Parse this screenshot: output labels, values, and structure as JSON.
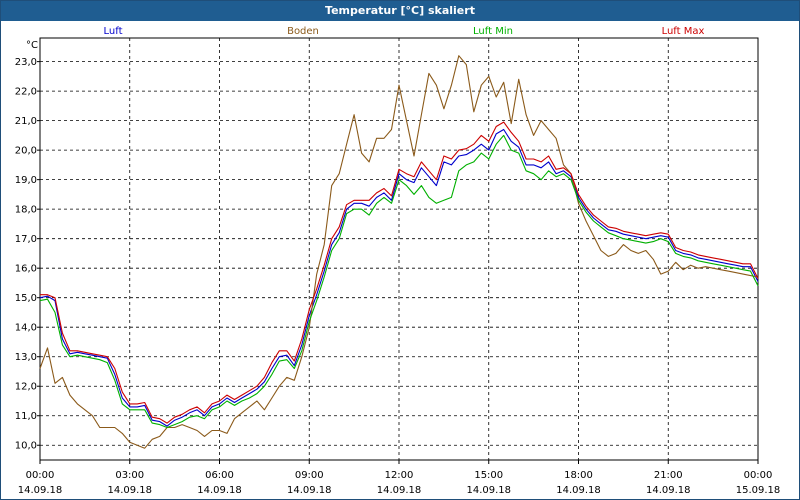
{
  "window": {
    "title": "Temperatur [°C] skaliert"
  },
  "chart_data": {
    "type": "line",
    "title": "Temperatur [°C] skaliert",
    "ylabel": "°C",
    "ylim": [
      9.5,
      23.8
    ],
    "xlim": [
      0,
      24
    ],
    "yticks": [
      10.0,
      11.0,
      12.0,
      13.0,
      14.0,
      15.0,
      16.0,
      17.0,
      18.0,
      19.0,
      20.0,
      21.0,
      22.0,
      23.0
    ],
    "ytick_labels": [
      "10,0",
      "11,0",
      "12,0",
      "13,0",
      "14,0",
      "15,0",
      "16,0",
      "17,0",
      "18,0",
      "19,0",
      "20,0",
      "21,0",
      "22,0",
      "23,0"
    ],
    "xticks": [
      0,
      3,
      6,
      9,
      12,
      15,
      18,
      21,
      24
    ],
    "xtick_time": [
      "00:00",
      "03:00",
      "06:00",
      "09:00",
      "12:00",
      "15:00",
      "18:00",
      "21:00",
      "00:00"
    ],
    "xtick_date": [
      "14.09.18",
      "14.09.18",
      "14.09.18",
      "14.09.18",
      "14.09.18",
      "14.09.18",
      "14.09.18",
      "14.09.18",
      "15.09.18"
    ],
    "grid": true,
    "series": [
      {
        "name": "Luft",
        "color": "#0000cc",
        "x": [
          0,
          0.25,
          0.5,
          0.75,
          1,
          1.25,
          1.5,
          1.75,
          2,
          2.25,
          2.5,
          2.75,
          3,
          3.25,
          3.5,
          3.75,
          4,
          4.25,
          4.5,
          4.75,
          5,
          5.25,
          5.5,
          5.75,
          6,
          6.25,
          6.5,
          6.75,
          7,
          7.25,
          7.5,
          7.75,
          8,
          8.25,
          8.5,
          8.75,
          9,
          9.25,
          9.5,
          9.75,
          10,
          10.25,
          10.5,
          10.75,
          11,
          11.25,
          11.5,
          11.75,
          12,
          12.25,
          12.5,
          12.75,
          13,
          13.25,
          13.5,
          13.75,
          14,
          14.25,
          14.5,
          14.75,
          15,
          15.25,
          15.5,
          15.75,
          16,
          16.25,
          16.5,
          16.75,
          17,
          17.25,
          17.5,
          17.75,
          18,
          18.25,
          18.5,
          18.75,
          19,
          19.25,
          19.5,
          19.75,
          20,
          20.25,
          20.5,
          20.75,
          21,
          21.25,
          21.5,
          21.75,
          22,
          22.25,
          22.5,
          22.75,
          23,
          23.25,
          23.5,
          23.75,
          24
        ],
        "values": [
          15.0,
          15.05,
          14.9,
          13.6,
          13.1,
          13.15,
          13.1,
          13.05,
          13.0,
          12.95,
          12.4,
          11.6,
          11.3,
          11.3,
          11.35,
          10.85,
          10.8,
          10.65,
          10.85,
          10.95,
          11.1,
          11.2,
          11.0,
          11.3,
          11.4,
          11.6,
          11.45,
          11.6,
          11.75,
          11.9,
          12.15,
          12.6,
          13.0,
          13.05,
          12.7,
          13.4,
          14.4,
          15.1,
          15.9,
          16.8,
          17.2,
          18.0,
          18.2,
          18.2,
          18.1,
          18.4,
          18.55,
          18.3,
          19.2,
          19.0,
          18.9,
          19.4,
          19.1,
          18.8,
          19.6,
          19.5,
          19.8,
          19.85,
          20.0,
          20.2,
          20.0,
          20.55,
          20.7,
          20.3,
          20.1,
          19.5,
          19.5,
          19.4,
          19.6,
          19.2,
          19.3,
          19.1,
          18.4,
          18.0,
          17.7,
          17.5,
          17.3,
          17.25,
          17.15,
          17.1,
          17.05,
          17.0,
          17.05,
          17.1,
          17.05,
          16.6,
          16.5,
          16.45,
          16.35,
          16.3,
          16.25,
          16.2,
          16.15,
          16.1,
          16.05,
          16.05,
          15.55
        ]
      },
      {
        "name": "Boden",
        "color": "#8b5a1a",
        "x": [
          0,
          0.25,
          0.5,
          0.75,
          1,
          1.25,
          1.5,
          1.75,
          2,
          2.25,
          2.5,
          2.75,
          3,
          3.25,
          3.5,
          3.75,
          4,
          4.25,
          4.5,
          4.75,
          5,
          5.25,
          5.5,
          5.75,
          6,
          6.25,
          6.5,
          6.75,
          7,
          7.25,
          7.5,
          7.75,
          8,
          8.25,
          8.5,
          8.75,
          9,
          9.25,
          9.5,
          9.75,
          10,
          10.25,
          10.5,
          10.75,
          11,
          11.25,
          11.5,
          11.75,
          12,
          12.25,
          12.5,
          12.75,
          13,
          13.25,
          13.5,
          13.75,
          14,
          14.25,
          14.5,
          14.75,
          15,
          15.25,
          15.5,
          15.75,
          16,
          16.25,
          16.5,
          16.75,
          17,
          17.25,
          17.5,
          17.75,
          18,
          18.25,
          18.5,
          18.75,
          19,
          19.25,
          19.5,
          19.75,
          20,
          20.25,
          20.5,
          20.75,
          21,
          21.25,
          21.5,
          21.75,
          22,
          22.25,
          22.5,
          22.75,
          23,
          23.25,
          23.5,
          23.75,
          24
        ],
        "values": [
          12.6,
          13.3,
          12.1,
          12.3,
          11.7,
          11.4,
          11.2,
          11.0,
          10.6,
          10.6,
          10.6,
          10.4,
          10.1,
          10.0,
          9.9,
          10.2,
          10.3,
          10.6,
          10.6,
          10.7,
          10.6,
          10.5,
          10.3,
          10.5,
          10.5,
          10.4,
          10.9,
          11.1,
          11.3,
          11.5,
          11.2,
          11.6,
          12.0,
          12.3,
          12.2,
          13.0,
          14.0,
          15.8,
          16.8,
          18.8,
          19.2,
          20.2,
          21.2,
          19.9,
          19.6,
          20.4,
          20.4,
          20.7,
          22.2,
          21.0,
          19.8,
          21.2,
          22.6,
          22.2,
          21.4,
          22.2,
          23.2,
          22.9,
          21.3,
          22.2,
          22.5,
          21.8,
          22.3,
          20.9,
          22.4,
          21.2,
          20.5,
          21.0,
          20.7,
          20.4,
          19.5,
          19.2,
          18.2,
          17.6,
          17.1,
          16.6,
          16.4,
          16.5,
          16.8,
          16.6,
          16.5,
          16.6,
          16.3,
          15.8,
          15.9,
          16.2,
          15.95,
          16.1,
          16.0,
          16.05,
          16.0,
          15.95,
          15.9,
          15.85,
          15.8,
          15.75,
          15.7
        ]
      },
      {
        "name": "Luft Min",
        "color": "#00b000",
        "x": [
          0,
          0.25,
          0.5,
          0.75,
          1,
          1.25,
          1.5,
          1.75,
          2,
          2.25,
          2.5,
          2.75,
          3,
          3.25,
          3.5,
          3.75,
          4,
          4.25,
          4.5,
          4.75,
          5,
          5.25,
          5.5,
          5.75,
          6,
          6.25,
          6.5,
          6.75,
          7,
          7.25,
          7.5,
          7.75,
          8,
          8.25,
          8.5,
          8.75,
          9,
          9.25,
          9.5,
          9.75,
          10,
          10.25,
          10.5,
          10.75,
          11,
          11.25,
          11.5,
          11.75,
          12,
          12.25,
          12.5,
          12.75,
          13,
          13.25,
          13.5,
          13.75,
          14,
          14.25,
          14.5,
          14.75,
          15,
          15.25,
          15.5,
          15.75,
          16,
          16.25,
          16.5,
          16.75,
          17,
          17.25,
          17.5,
          17.75,
          18,
          18.25,
          18.5,
          18.75,
          19,
          19.25,
          19.5,
          19.75,
          20,
          20.25,
          20.5,
          20.75,
          21,
          21.25,
          21.5,
          21.75,
          22,
          22.25,
          22.5,
          22.75,
          23,
          23.25,
          23.5,
          23.75,
          24
        ],
        "values": [
          14.9,
          14.95,
          14.5,
          13.4,
          13.0,
          13.05,
          13.0,
          12.95,
          12.9,
          12.8,
          12.2,
          11.4,
          11.2,
          11.2,
          11.2,
          10.75,
          10.7,
          10.6,
          10.7,
          10.8,
          10.95,
          11.0,
          10.9,
          11.2,
          11.3,
          11.5,
          11.35,
          11.5,
          11.6,
          11.75,
          12.0,
          12.4,
          12.85,
          12.9,
          12.6,
          13.2,
          14.2,
          14.9,
          15.7,
          16.6,
          17.0,
          17.85,
          18.0,
          18.0,
          17.8,
          18.2,
          18.4,
          18.2,
          19.0,
          18.8,
          18.5,
          18.8,
          18.4,
          18.2,
          18.3,
          18.4,
          19.3,
          19.5,
          19.6,
          19.9,
          19.7,
          20.2,
          20.5,
          20.0,
          19.9,
          19.3,
          19.2,
          19.0,
          19.3,
          19.1,
          19.2,
          19.0,
          18.3,
          17.9,
          17.6,
          17.4,
          17.2,
          17.1,
          17.0,
          16.95,
          16.9,
          16.85,
          16.9,
          17.0,
          16.9,
          16.5,
          16.4,
          16.35,
          16.25,
          16.2,
          16.15,
          16.1,
          16.05,
          16.0,
          15.95,
          15.9,
          15.4
        ]
      },
      {
        "name": "Luft Max",
        "color": "#cc0000",
        "x": [
          0,
          0.25,
          0.5,
          0.75,
          1,
          1.25,
          1.5,
          1.75,
          2,
          2.25,
          2.5,
          2.75,
          3,
          3.25,
          3.5,
          3.75,
          4,
          4.25,
          4.5,
          4.75,
          5,
          5.25,
          5.5,
          5.75,
          6,
          6.25,
          6.5,
          6.75,
          7,
          7.25,
          7.5,
          7.75,
          8,
          8.25,
          8.5,
          8.75,
          9,
          9.25,
          9.5,
          9.75,
          10,
          10.25,
          10.5,
          10.75,
          11,
          11.25,
          11.5,
          11.75,
          12,
          12.25,
          12.5,
          12.75,
          13,
          13.25,
          13.5,
          13.75,
          14,
          14.25,
          14.5,
          14.75,
          15,
          15.25,
          15.5,
          15.75,
          16,
          16.25,
          16.5,
          16.75,
          17,
          17.25,
          17.5,
          17.75,
          18,
          18.25,
          18.5,
          18.75,
          19,
          19.25,
          19.5,
          19.75,
          20,
          20.25,
          20.5,
          20.75,
          21,
          21.25,
          21.5,
          21.75,
          22,
          22.25,
          22.5,
          22.75,
          23,
          23.25,
          23.5,
          23.75,
          24
        ],
        "values": [
          15.1,
          15.1,
          15.0,
          13.8,
          13.2,
          13.2,
          13.15,
          13.1,
          13.05,
          13.0,
          12.6,
          11.8,
          11.4,
          11.4,
          11.45,
          10.95,
          10.9,
          10.75,
          10.95,
          11.05,
          11.2,
          11.3,
          11.1,
          11.4,
          11.5,
          11.7,
          11.55,
          11.7,
          11.85,
          12.0,
          12.3,
          12.8,
          13.2,
          13.2,
          12.85,
          13.6,
          14.6,
          15.3,
          16.1,
          17.0,
          17.4,
          18.15,
          18.3,
          18.3,
          18.3,
          18.55,
          18.7,
          18.45,
          19.35,
          19.2,
          19.1,
          19.6,
          19.3,
          19.0,
          19.8,
          19.7,
          20.0,
          20.05,
          20.2,
          20.5,
          20.3,
          20.8,
          20.95,
          20.6,
          20.3,
          19.7,
          19.7,
          19.6,
          19.8,
          19.35,
          19.4,
          19.2,
          18.5,
          18.1,
          17.8,
          17.6,
          17.4,
          17.35,
          17.25,
          17.2,
          17.15,
          17.1,
          17.15,
          17.2,
          17.15,
          16.7,
          16.6,
          16.55,
          16.45,
          16.4,
          16.35,
          16.3,
          16.25,
          16.2,
          16.15,
          16.15,
          15.65
        ]
      }
    ]
  }
}
